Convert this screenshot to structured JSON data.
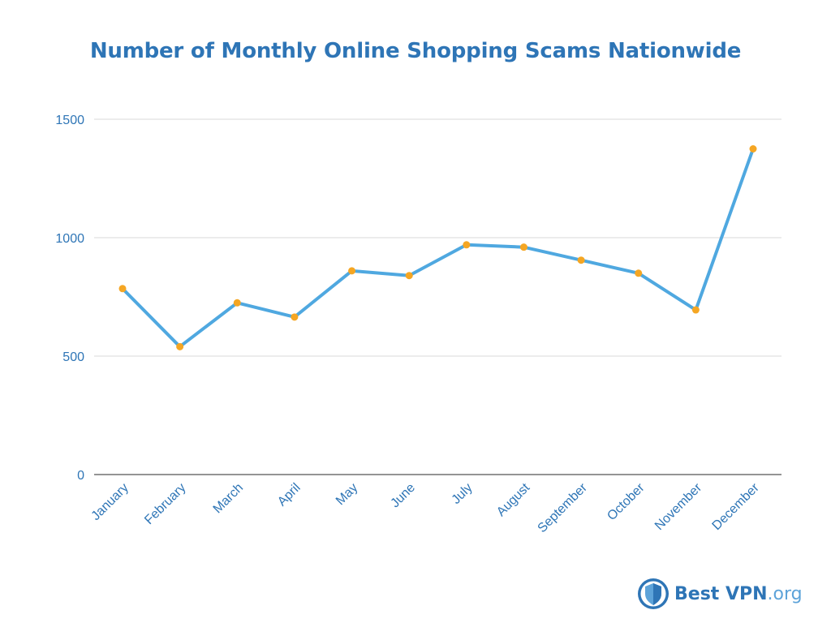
{
  "chart_data": {
    "type": "line",
    "title": "Number of Monthly Online Shopping Scams Nationwide",
    "xlabel": "",
    "ylabel": "",
    "categories": [
      "January",
      "February",
      "March",
      "April",
      "May",
      "June",
      "July",
      "August",
      "September",
      "October",
      "November",
      "December"
    ],
    "series": [
      {
        "values": [
          785,
          540,
          725,
          665,
          860,
          840,
          970,
          960,
          905,
          850,
          695,
          1375
        ]
      }
    ],
    "ylim": [
      0,
      1500
    ],
    "yticks": [
      0,
      500,
      1000,
      1500
    ],
    "grid": true,
    "legend": "none",
    "colors": {
      "line": "#4fa8e0",
      "marker": "#f5a623",
      "title": "#2e75b6",
      "ticks": "#2e75b6",
      "grid": "#d9d9d9"
    }
  },
  "brand": {
    "name": "Best VPN",
    "tld": ".org",
    "logo_icon": "shield-icon"
  }
}
